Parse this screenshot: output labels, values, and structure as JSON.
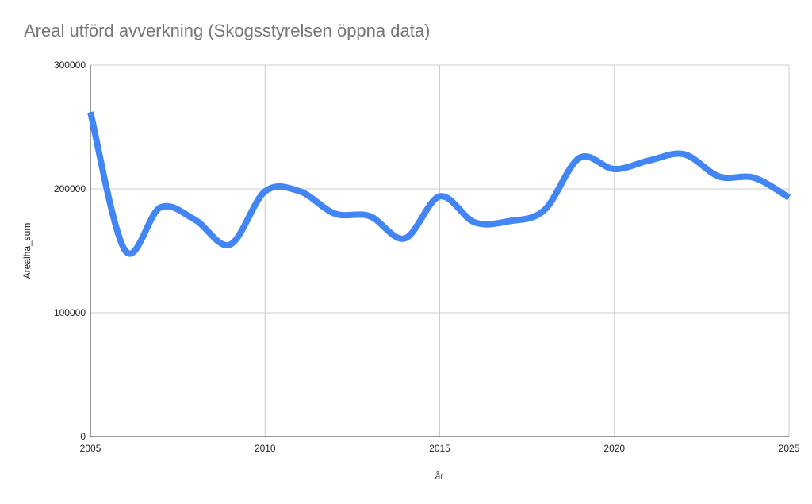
{
  "chart_data": {
    "type": "line",
    "title": "Areal utförd avverkning (Skogsstyrelsen öppna data)",
    "xlabel": "år",
    "ylabel": "Arealha_sum",
    "xlim": [
      2005,
      2025
    ],
    "ylim": [
      0,
      300000
    ],
    "x_ticks": [
      "2005",
      "2010",
      "2015",
      "2020",
      "2025"
    ],
    "y_ticks": [
      "0",
      "100000",
      "200000",
      "300000"
    ],
    "grid": true,
    "legend": "none",
    "line_color": "#4285f4",
    "series": [
      {
        "x": [
          2005,
          2006,
          2007,
          2008,
          2009,
          2010,
          2011,
          2012,
          2013,
          2014,
          2015,
          2016,
          2017,
          2018,
          2019,
          2020,
          2021,
          2022,
          2023,
          2024,
          2025
        ],
        "values": [
          262000,
          150000,
          185000,
          175000,
          155000,
          198000,
          198000,
          180000,
          178000,
          160000,
          194000,
          173000,
          174000,
          183000,
          225000,
          216000,
          223000,
          228000,
          210000,
          209000,
          193000
        ]
      }
    ]
  }
}
